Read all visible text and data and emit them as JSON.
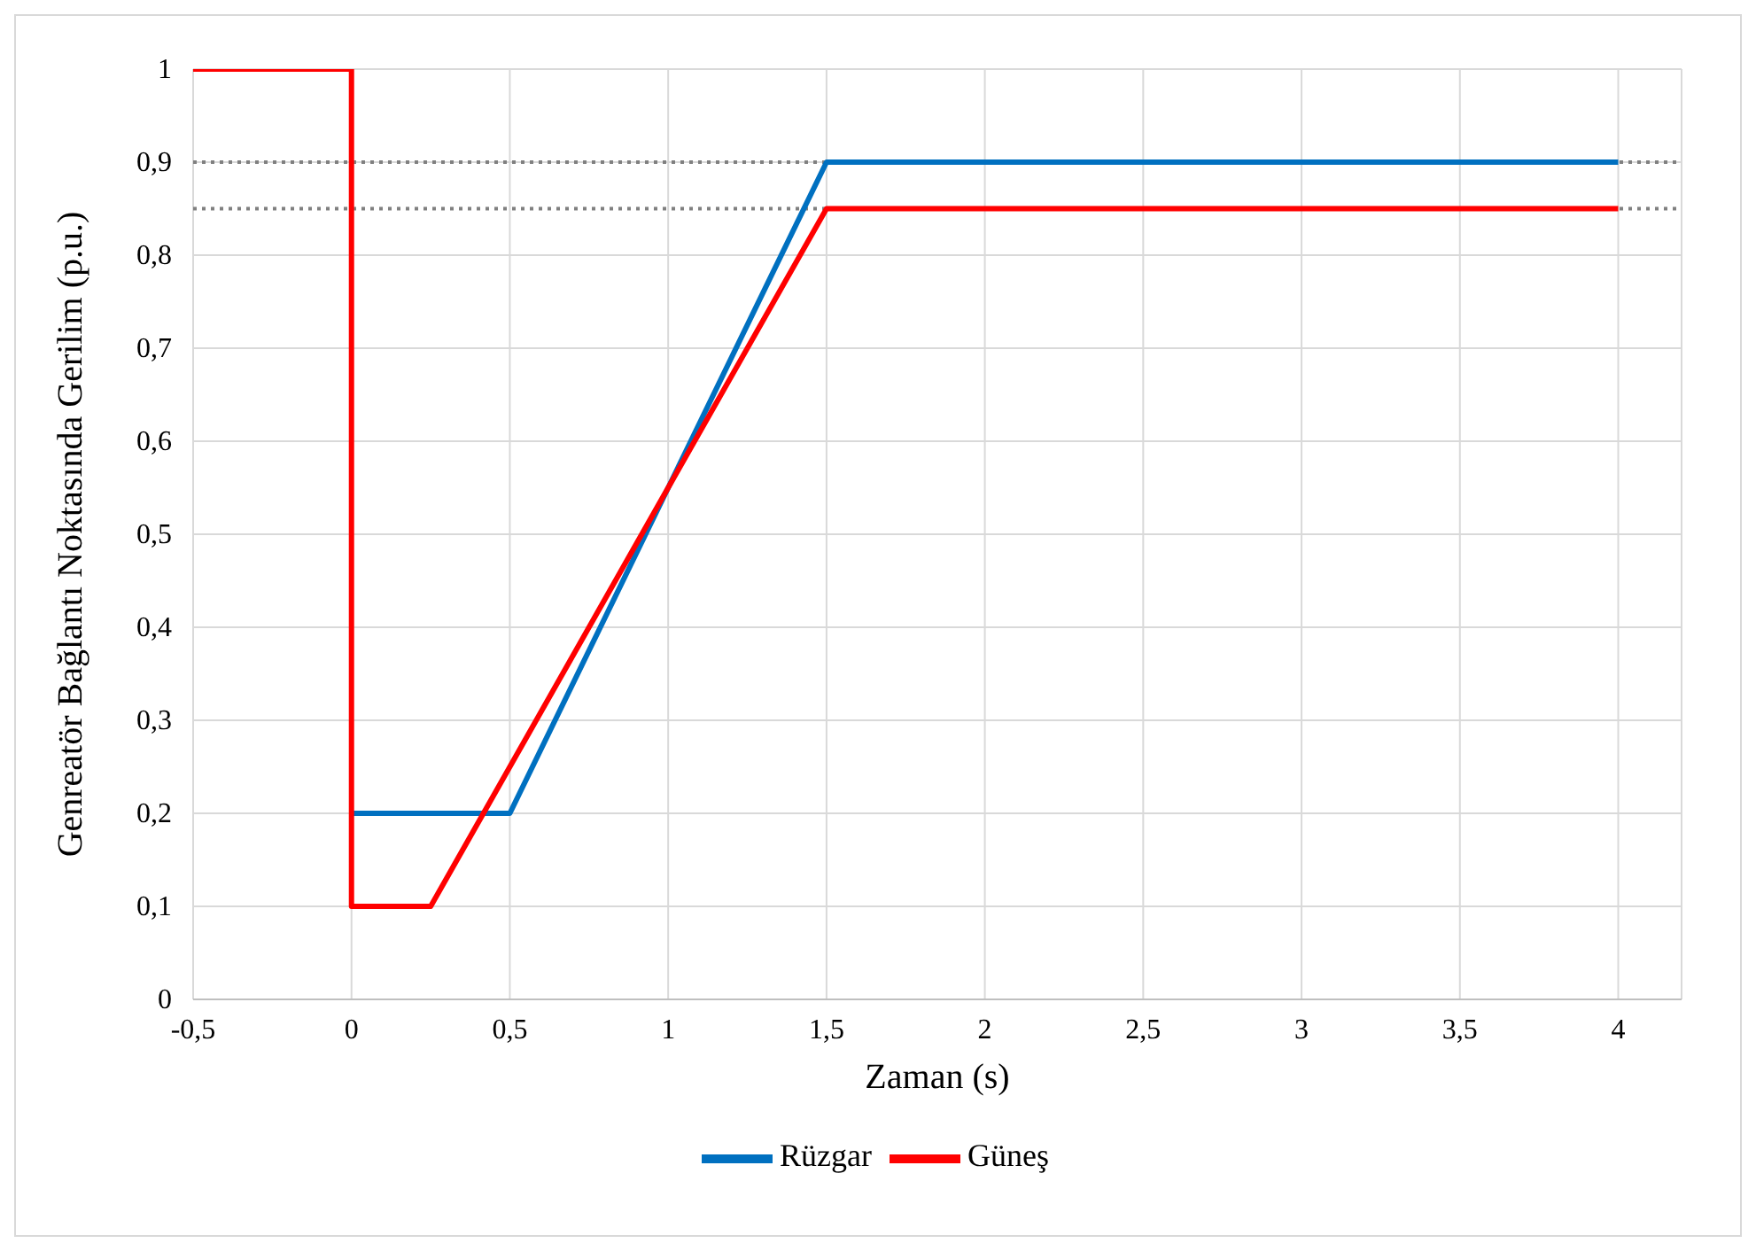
{
  "chart_data": {
    "type": "line",
    "xlabel": "Zaman (s)",
    "ylabel": "Genreatör Bağlantı Noktasında  Gerilim (p.u.)",
    "series": [
      {
        "name": "Rüzgar",
        "color": "#0070c0",
        "x": [
          0,
          0.5,
          1.5,
          4
        ],
        "values": [
          0.2,
          0.2,
          0.9,
          0.9
        ]
      },
      {
        "name": "Güneş",
        "color": "#ff0000",
        "x": [
          -0.5,
          0,
          0,
          0.25,
          1.5,
          4
        ],
        "values": [
          1,
          1,
          0.1,
          0.1,
          0.85,
          0.85
        ]
      }
    ],
    "xlim": [
      -0.5,
      4.2
    ],
    "xticks": [
      {
        "value": -0.5,
        "label": "-0,5"
      },
      0,
      {
        "value": 0.5,
        "label": "0,5"
      },
      1,
      {
        "value": 1.5,
        "label": "1,5"
      },
      2,
      {
        "value": 2.5,
        "label": "2,5"
      },
      3,
      {
        "value": 3.5,
        "label": "3,5"
      },
      4
    ],
    "ylim": [
      0,
      1
    ],
    "yticks": [
      0,
      {
        "value": 0.1,
        "label": "0,1"
      },
      {
        "value": 0.2,
        "label": "0,2"
      },
      {
        "value": 0.3,
        "label": "0,3"
      },
      {
        "value": 0.4,
        "label": "0,4"
      },
      {
        "value": 0.5,
        "label": "0,5"
      },
      {
        "value": 0.6,
        "label": "0,6"
      },
      {
        "value": 0.7,
        "label": "0,7"
      },
      {
        "value": 0.8,
        "label": "0,8"
      },
      {
        "value": 0.9,
        "label": "0,9"
      },
      1
    ],
    "ref_lines": [
      {
        "axis": "y",
        "value": 0.9,
        "color": "#808080",
        "line_style": "dotted"
      },
      {
        "axis": "y",
        "value": 0.85,
        "color": "#808080",
        "line_style": "dotted"
      }
    ],
    "grid": true,
    "legend": "bottom",
    "marker": "none",
    "line_style": "solid"
  }
}
